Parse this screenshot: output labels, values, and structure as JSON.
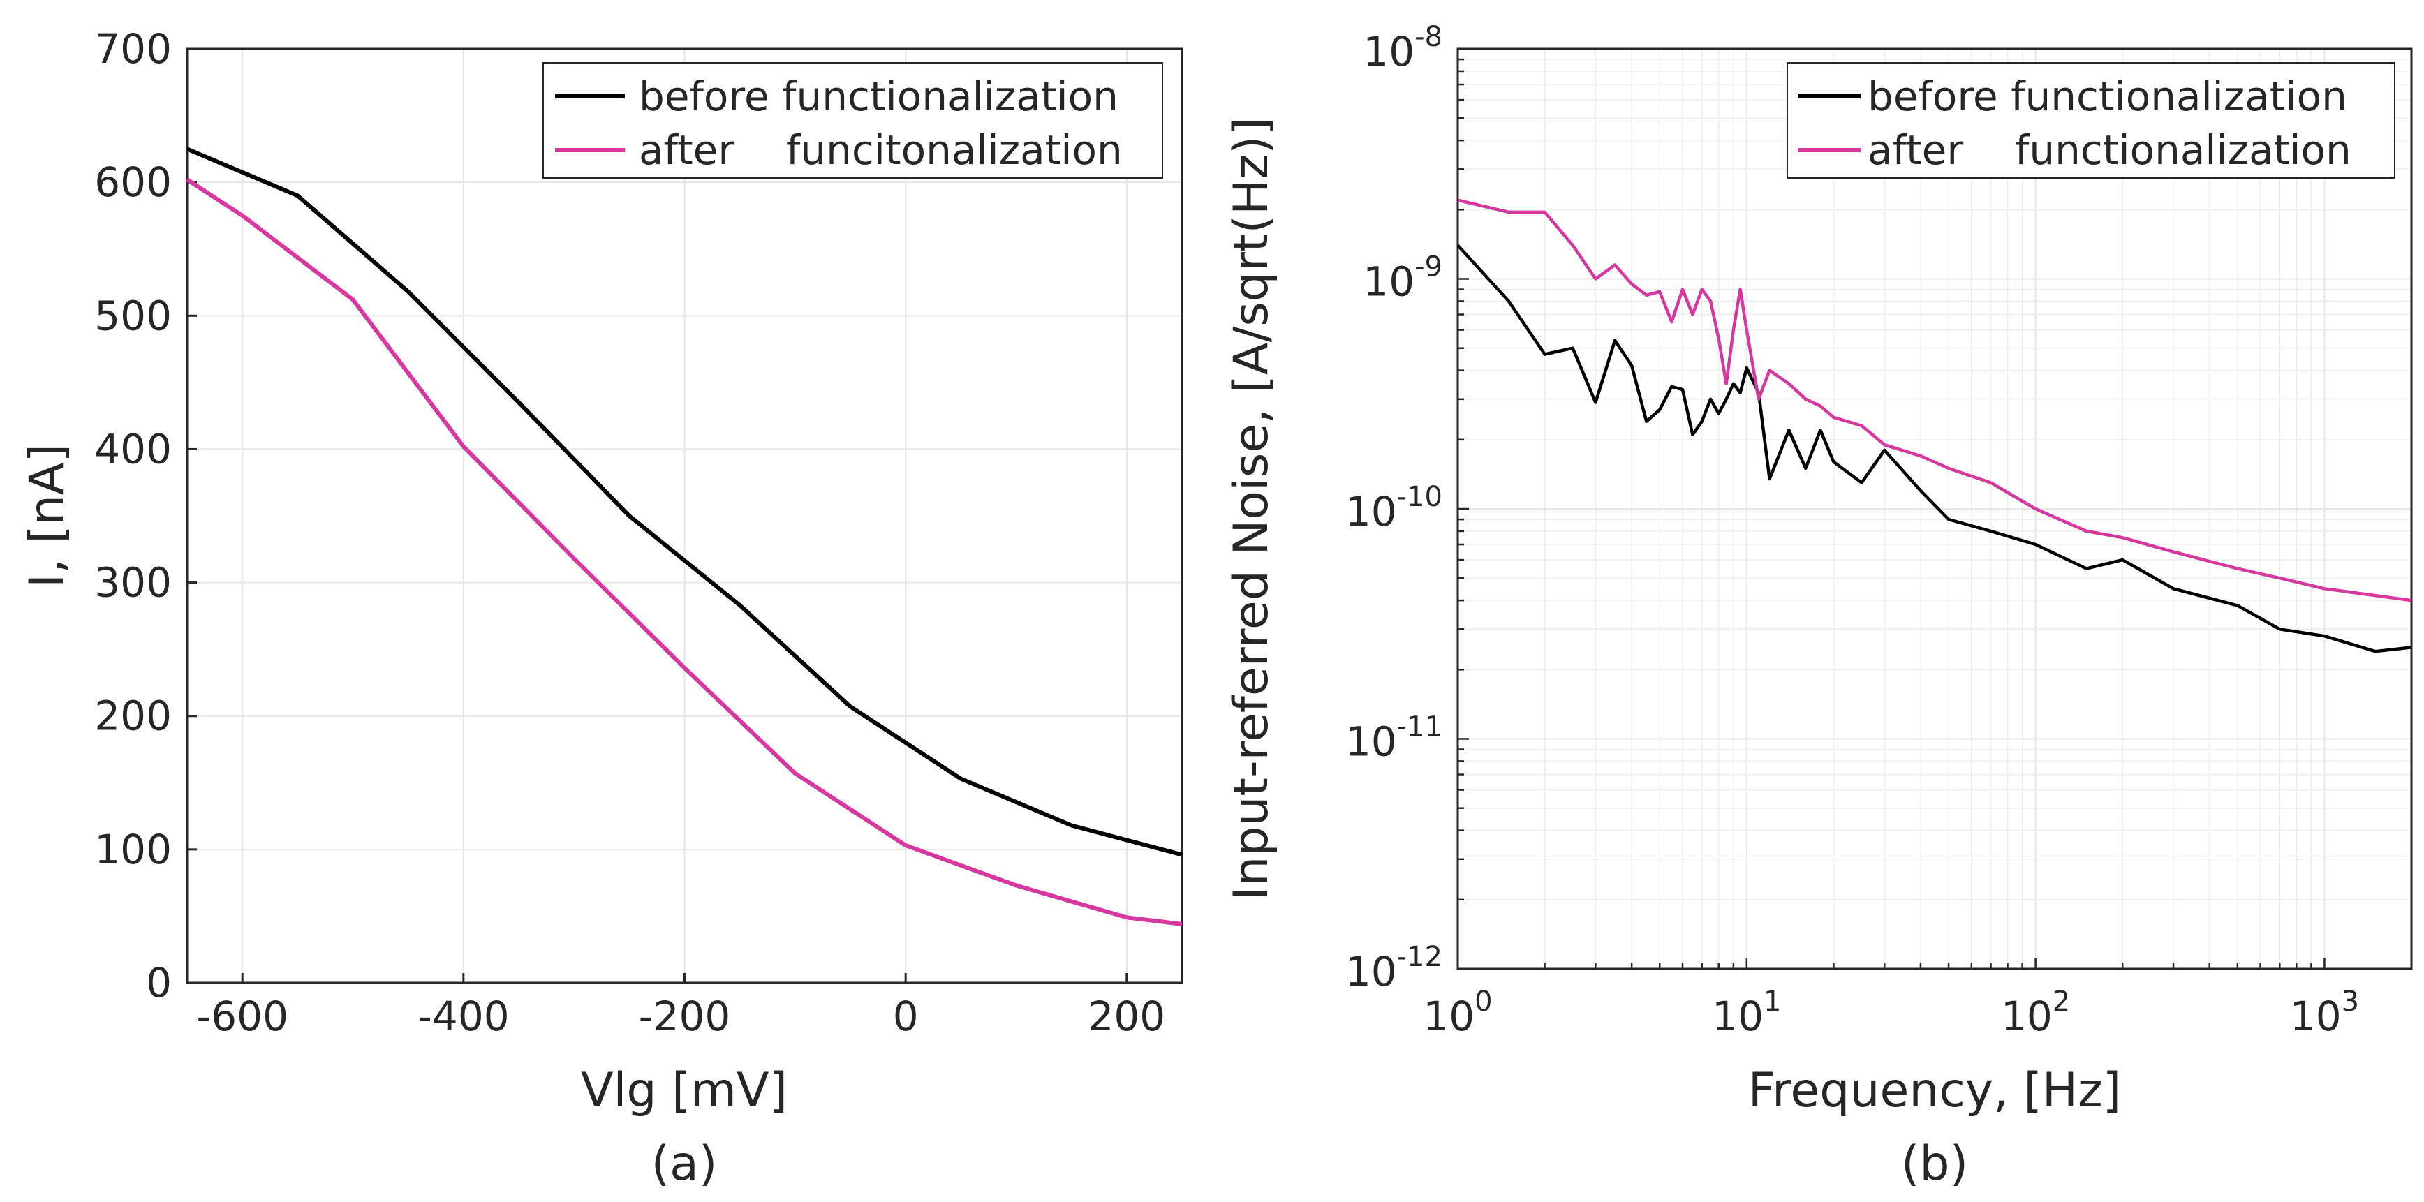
{
  "colors": {
    "before": "#000000",
    "after": "#d6389f",
    "grid_major": "#e6e6e6",
    "grid_minor": "#ededed",
    "axis": "#262626"
  },
  "chart_data": [
    {
      "type": "line",
      "caption": "(a)",
      "xlabel": "Vlg [mV]",
      "ylabel": "I, [nA]",
      "xlim": [
        -650,
        250
      ],
      "ylim": [
        0,
        700
      ],
      "xticks": [
        -600,
        -400,
        -200,
        0,
        200
      ],
      "yticks": [
        0,
        100,
        200,
        300,
        400,
        500,
        600,
        700
      ],
      "xtick_labels": [
        "-600",
        "-400",
        "-200",
        "0",
        "200"
      ],
      "ytick_labels": [
        "0",
        "100",
        "200",
        "300",
        "400",
        "500",
        "600",
        "700"
      ],
      "grid": true,
      "legend_position": "top-right",
      "series": [
        {
          "name": "before functionalization",
          "color_key": "before",
          "x": [
            -650,
            -550,
            -450,
            -350,
            -250,
            -150,
            -50,
            50,
            150,
            250
          ],
          "y": [
            625,
            590,
            518,
            435,
            350,
            283,
            207,
            153,
            118,
            96
          ]
        },
        {
          "name": "after    funcitonalization",
          "color_key": "after",
          "x": [
            -650,
            -600,
            -500,
            -400,
            -300,
            -200,
            -100,
            0,
            100,
            200,
            250
          ],
          "y": [
            602,
            575,
            512,
            402,
            318,
            236,
            157,
            103,
            73,
            49,
            44
          ]
        }
      ]
    },
    {
      "type": "line",
      "caption": "(b)",
      "xlabel": "Frequency, [Hz]",
      "ylabel": "Input-referred Noise, [A/sqrt(Hz)]",
      "xscale": "log",
      "yscale": "log",
      "xlim": [
        1,
        2000
      ],
      "ylim": [
        1e-12,
        1e-08
      ],
      "xtick_labels": [
        {
          "base": "10",
          "exp": "0"
        },
        {
          "base": "10",
          "exp": "1"
        },
        {
          "base": "10",
          "exp": "2"
        },
        {
          "base": "10",
          "exp": "3"
        }
      ],
      "ytick_labels": [
        {
          "base": "10",
          "exp": "-12"
        },
        {
          "base": "10",
          "exp": "-11"
        },
        {
          "base": "10",
          "exp": "-10"
        },
        {
          "base": "10",
          "exp": "-9"
        },
        {
          "base": "10",
          "exp": "-8"
        }
      ],
      "grid": true,
      "legend_position": "top-right",
      "series": [
        {
          "name": "before functionalization",
          "color_key": "before",
          "x": [
            1,
            1.5,
            2,
            2.5,
            3,
            3.5,
            4,
            4.5,
            5,
            5.5,
            6,
            6.5,
            7,
            7.5,
            8,
            8.5,
            9,
            9.5,
            10,
            11,
            12,
            14,
            16,
            18,
            20,
            25,
            30,
            40,
            50,
            70,
            100,
            150,
            200,
            300,
            500,
            700,
            1000,
            1500,
            2000
          ],
          "y": [
            1.4e-09,
            8e-10,
            4.7e-10,
            5e-10,
            2.9e-10,
            5.4e-10,
            4.2e-10,
            2.4e-10,
            2.7e-10,
            3.4e-10,
            3.3e-10,
            2.1e-10,
            2.4e-10,
            3e-10,
            2.6e-10,
            3e-10,
            3.5e-10,
            3.2e-10,
            4.1e-10,
            3.2e-10,
            1.35e-10,
            2.2e-10,
            1.5e-10,
            2.2e-10,
            1.6e-10,
            1.3e-10,
            1.8e-10,
            1.2e-10,
            9e-11,
            8e-11,
            7e-11,
            5.5e-11,
            6e-11,
            4.5e-11,
            3.8e-11,
            3e-11,
            2.8e-11,
            2.4e-11,
            2.5e-11
          ]
        },
        {
          "name": "after    functionalization",
          "color_key": "after",
          "x": [
            1,
            1.5,
            2,
            2.5,
            3,
            3.5,
            4,
            4.5,
            5,
            5.5,
            6,
            6.5,
            7,
            7.5,
            8,
            8.5,
            9,
            9.5,
            10,
            11,
            12,
            14,
            16,
            18,
            20,
            25,
            30,
            40,
            50,
            70,
            100,
            150,
            200,
            300,
            500,
            700,
            1000,
            1500,
            2000
          ],
          "y": [
            2.2e-09,
            1.95e-09,
            1.95e-09,
            1.4e-09,
            1e-09,
            1.15e-09,
            9.5e-10,
            8.5e-10,
            8.8e-10,
            6.5e-10,
            9e-10,
            7e-10,
            9e-10,
            8e-10,
            5.5e-10,
            3.5e-10,
            6e-10,
            9e-10,
            6e-10,
            3e-10,
            4e-10,
            3.5e-10,
            3e-10,
            2.8e-10,
            2.5e-10,
            2.3e-10,
            1.9e-10,
            1.7e-10,
            1.5e-10,
            1.3e-10,
            1e-10,
            8e-11,
            7.5e-11,
            6.5e-11,
            5.5e-11,
            5e-11,
            4.5e-11,
            4.2e-11,
            4e-11
          ]
        }
      ]
    }
  ]
}
